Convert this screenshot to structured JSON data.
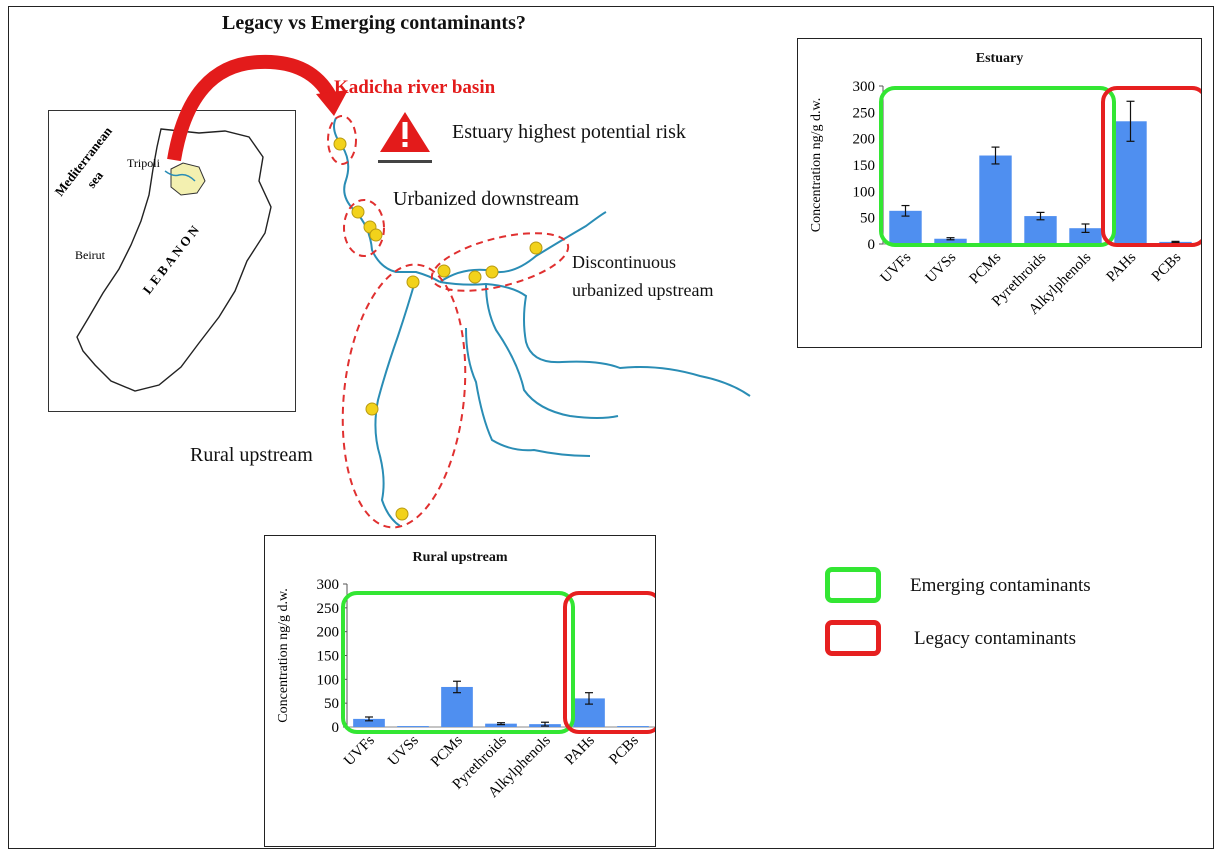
{
  "title": "Legacy vs Emerging contaminants?",
  "basin_label": "Kadicha river basin",
  "map_labels": {
    "estuary": "Estuary highest potential risk",
    "urbanized": "Urbanized downstream",
    "discontinuous_1": "Discontinuous",
    "discontinuous_2": "urbanized upstream",
    "rural": "Rural upstream"
  },
  "lebanon_map": {
    "sea_1": "Mediterranean",
    "sea_2": "sea",
    "tripoli": "Tripoli",
    "beirut": "Beirut",
    "country": "LEBANON"
  },
  "legend": {
    "emerging": "Emerging contaminants",
    "legacy": "Legacy contaminants"
  },
  "colors": {
    "bar": "#4f8ff0",
    "emerging": "#33e633",
    "legacy": "#e62020",
    "river": "#2a8db5",
    "site": "#f2d21b",
    "alert": "#e31b1b"
  },
  "chart_data": [
    {
      "type": "bar",
      "title": "Estuary",
      "ylabel": "Concentration ng/g d.w.",
      "xlabel": "",
      "ylim": [
        0,
        300
      ],
      "yticks": [
        0,
        50,
        100,
        150,
        200,
        250,
        300
      ],
      "categories": [
        "UVFs",
        "UVSs",
        "PCMs",
        "Pyrethroids",
        "Alkylphenols",
        "PAHs",
        "PCBs"
      ],
      "values": [
        63,
        10,
        168,
        53,
        30,
        233,
        4
      ],
      "errors": [
        10,
        2,
        16,
        7,
        8,
        38,
        1
      ],
      "groups": [
        {
          "name": "Emerging contaminants",
          "categories": [
            "UVFs",
            "UVSs",
            "PCMs",
            "Pyrethroids",
            "Alkylphenols"
          ]
        },
        {
          "name": "Legacy contaminants",
          "categories": [
            "PAHs",
            "PCBs"
          ]
        }
      ]
    },
    {
      "type": "bar",
      "title": "Rural upstream",
      "ylabel": "Concentration ng/g d.w.",
      "xlabel": "",
      "ylim": [
        0,
        300
      ],
      "yticks": [
        0,
        50,
        100,
        150,
        200,
        250,
        300
      ],
      "categories": [
        "UVFs",
        "UVSs",
        "PCMs",
        "Pyrethroids",
        "Alkylphenols",
        "PAHs",
        "PCBs"
      ],
      "values": [
        17,
        2,
        84,
        7,
        6,
        60,
        2
      ],
      "errors": [
        4,
        0,
        12,
        2,
        4,
        12,
        0
      ],
      "groups": [
        {
          "name": "Emerging contaminants",
          "categories": [
            "UVFs",
            "UVSs",
            "PCMs",
            "Pyrethroids",
            "Alkylphenols"
          ]
        },
        {
          "name": "Legacy contaminants",
          "categories": [
            "PAHs",
            "PCBs"
          ]
        }
      ]
    }
  ]
}
